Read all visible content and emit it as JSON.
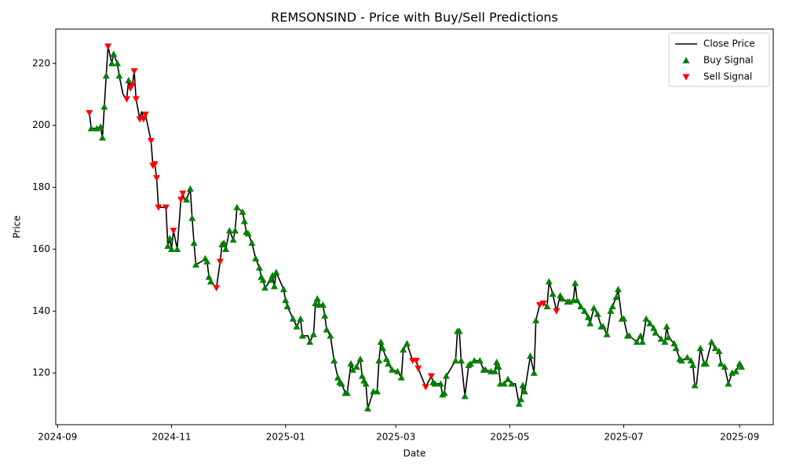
{
  "chart_data": {
    "type": "line",
    "title": "REMSONSIND - Price with Buy/Sell Predictions",
    "xlabel": "Date",
    "ylabel": "Price",
    "xlim": [
      "2024-08-31",
      "2025-09-19"
    ],
    "xticks": [
      {
        "value": "2024-09-01",
        "label": "2024-09"
      },
      {
        "value": "2024-11-01",
        "label": "2024-11"
      },
      {
        "value": "2025-01-01",
        "label": "2025-01"
      },
      {
        "value": "2025-03-01",
        "label": "2025-03"
      },
      {
        "value": "2025-05-01",
        "label": "2025-05"
      },
      {
        "value": "2025-07-01",
        "label": "2025-07"
      },
      {
        "value": "2025-09-01",
        "label": "2025-09"
      }
    ],
    "ylim": [
      103.3,
      231.1
    ],
    "yticks": [
      120,
      140,
      160,
      180,
      200,
      220
    ],
    "grid": false,
    "legend": "upper right",
    "series": [
      {
        "name": "Close Price",
        "type": "line",
        "color": "#000000",
        "x": [
          "2024-09-18",
          "2024-09-19",
          "2024-09-22",
          "2024-09-24",
          "2024-09-25",
          "2024-09-26",
          "2024-09-27",
          "2024-09-28",
          "2024-09-30",
          "2024-10-01",
          "2024-10-03",
          "2024-10-04",
          "2024-10-06",
          "2024-10-08",
          "2024-10-09",
          "2024-10-10",
          "2024-10-11",
          "2024-10-12",
          "2024-10-13",
          "2024-10-15",
          "2024-10-16",
          "2024-10-17",
          "2024-10-18",
          "2024-10-21",
          "2024-10-22",
          "2024-10-23",
          "2024-10-24",
          "2024-10-25",
          "2024-10-27",
          "2024-10-29",
          "2024-10-30",
          "2024-10-31",
          "2024-11-01",
          "2024-11-02",
          "2024-11-04",
          "2024-11-06",
          "2024-11-07",
          "2024-11-08",
          "2024-11-09",
          "2024-11-11",
          "2024-11-12",
          "2024-11-13",
          "2024-11-14",
          "2024-11-17",
          "2024-11-19",
          "2024-11-20",
          "2024-11-21",
          "2024-11-22",
          "2024-11-25",
          "2024-11-27",
          "2024-11-28",
          "2024-11-29",
          "2024-11-30",
          "2024-12-02",
          "2024-12-04",
          "2024-12-05",
          "2024-12-06",
          "2024-12-09",
          "2024-12-10",
          "2024-12-11",
          "2024-12-12",
          "2024-12-14",
          "2024-12-16",
          "2024-12-18",
          "2024-12-19",
          "2024-12-20",
          "2024-12-21",
          "2024-12-24",
          "2024-12-25",
          "2024-12-26",
          "2024-12-27",
          "2024-12-31",
          "2025-01-01",
          "2025-01-02",
          "2025-01-05",
          "2025-01-07",
          "2025-01-09",
          "2025-01-10",
          "2025-01-13",
          "2025-01-14",
          "2025-01-16",
          "2025-01-17",
          "2025-01-18",
          "2025-01-19",
          "2025-01-21",
          "2025-01-22",
          "2025-01-23",
          "2025-01-25",
          "2025-01-27",
          "2025-01-29",
          "2025-01-30",
          "2025-01-31",
          "2025-02-02",
          "2025-02-03",
          "2025-02-05",
          "2025-02-06",
          "2025-02-08",
          "2025-02-10",
          "2025-02-11",
          "2025-02-12",
          "2025-02-13",
          "2025-02-14",
          "2025-02-17",
          "2025-02-19",
          "2025-02-20",
          "2025-02-21",
          "2025-02-22",
          "2025-02-24",
          "2025-02-25",
          "2025-02-27",
          "2025-03-02",
          "2025-03-04",
          "2025-03-05",
          "2025-03-07",
          "2025-03-10",
          "2025-03-12",
          "2025-03-13",
          "2025-03-17",
          "2025-03-20",
          "2025-03-21",
          "2025-03-22",
          "2025-03-25",
          "2025-03-26",
          "2025-03-27",
          "2025-03-28",
          "2025-04-02",
          "2025-04-03",
          "2025-04-04",
          "2025-04-05",
          "2025-04-07",
          "2025-04-09",
          "2025-04-10",
          "2025-04-12",
          "2025-04-15",
          "2025-04-17",
          "2025-04-18",
          "2025-04-21",
          "2025-04-23",
          "2025-04-24",
          "2025-04-25",
          "2025-04-26",
          "2025-04-28",
          "2025-04-30",
          "2025-05-02",
          "2025-05-04",
          "2025-05-06",
          "2025-05-07",
          "2025-05-08",
          "2025-05-09",
          "2025-05-12",
          "2025-05-14",
          "2025-05-15",
          "2025-05-17",
          "2025-05-19",
          "2025-05-21",
          "2025-05-22",
          "2025-05-24",
          "2025-05-26",
          "2025-05-28",
          "2025-05-29",
          "2025-06-01",
          "2025-06-02",
          "2025-06-04",
          "2025-06-05",
          "2025-06-06",
          "2025-06-08",
          "2025-06-10",
          "2025-06-12",
          "2025-06-13",
          "2025-06-15",
          "2025-06-17",
          "2025-06-19",
          "2025-06-20",
          "2025-06-22",
          "2025-06-24",
          "2025-06-25",
          "2025-06-27",
          "2025-06-28",
          "2025-06-30",
          "2025-07-01",
          "2025-07-03",
          "2025-07-04",
          "2025-07-08",
          "2025-07-10",
          "2025-07-11",
          "2025-07-13",
          "2025-07-15",
          "2025-07-17",
          "2025-07-18",
          "2025-07-21",
          "2025-07-23",
          "2025-07-24",
          "2025-07-25",
          "2025-07-28",
          "2025-07-29",
          "2025-07-31",
          "2025-08-01",
          "2025-08-04",
          "2025-08-06",
          "2025-08-07",
          "2025-08-08",
          "2025-08-09",
          "2025-08-11",
          "2025-08-13",
          "2025-08-14",
          "2025-08-17",
          "2025-08-19",
          "2025-08-21",
          "2025-08-22",
          "2025-08-24",
          "2025-08-26",
          "2025-08-28",
          "2025-08-30",
          "2025-09-01",
          "2025-09-02"
        ],
        "values": [
          204,
          199,
          199,
          199.5,
          196,
          206,
          216,
          225.5,
          220,
          223,
          220,
          216,
          210,
          208.5,
          214.5,
          212,
          213,
          217.5,
          208.5,
          202,
          204.5,
          202,
          203.5,
          195,
          187,
          187.5,
          183,
          173.5,
          173.5,
          173.5,
          161,
          163.5,
          160,
          166,
          160,
          176,
          178,
          176,
          176,
          179.5,
          170,
          162,
          155,
          156,
          157,
          156,
          151,
          149.5,
          147.5,
          156,
          161.5,
          162,
          160,
          166,
          163,
          166,
          173.5,
          172,
          169,
          165.5,
          165,
          162,
          157,
          154,
          151,
          150,
          147.5,
          150,
          151.5,
          148,
          152.5,
          147,
          143.5,
          141.5,
          137.5,
          135,
          137.5,
          132,
          132,
          130,
          132.5,
          142.5,
          144,
          142,
          142,
          138.5,
          134,
          132,
          124,
          118.5,
          117,
          116.5,
          113.5,
          113.5,
          123,
          121,
          122,
          124.5,
          119,
          117.5,
          116.5,
          108.5,
          114,
          114,
          124,
          130,
          128,
          124.5,
          123,
          121,
          120.5,
          118.5,
          127.5,
          129.5,
          124,
          124,
          121.5,
          115.5,
          119,
          117,
          116.5,
          116.5,
          113,
          113.5,
          119,
          124,
          133.5,
          133.5,
          124,
          112.5,
          122.5,
          123,
          124,
          124,
          121,
          121,
          120.5,
          120.5,
          123.5,
          122,
          116.5,
          116.5,
          118,
          116.5,
          116.5,
          110,
          111.5,
          116,
          114,
          125.5,
          120,
          137,
          142,
          142.5,
          141.5,
          149.5,
          145.5,
          140,
          145,
          144,
          143,
          143,
          143.5,
          149,
          143.5,
          141.5,
          140,
          138,
          136,
          141,
          139,
          135,
          135,
          132.5,
          140,
          141.5,
          144.5,
          147,
          137.5,
          137.5,
          132,
          132,
          130,
          132,
          130,
          137.5,
          136,
          134.5,
          133,
          131,
          130,
          135,
          131.5,
          129.5,
          128,
          124.5,
          124,
          125,
          124,
          122.5,
          116,
          116.5,
          128,
          123,
          123,
          130,
          128,
          127,
          123,
          122,
          116.5,
          120,
          120.5,
          123,
          122
        ]
      },
      {
        "name": "Buy Signal",
        "type": "scatter",
        "marker": "up",
        "color": "#008000",
        "x": [
          "2024-09-19",
          "2024-09-22",
          "2024-09-24",
          "2024-09-25",
          "2024-09-26",
          "2024-09-27",
          "2024-09-30",
          "2024-10-01",
          "2024-10-03",
          "2024-10-04",
          "2024-10-09",
          "2024-10-30",
          "2024-10-31",
          "2024-11-01",
          "2024-11-04",
          "2024-11-09",
          "2024-11-11",
          "2024-11-12",
          "2024-11-13",
          "2024-11-14",
          "2024-11-19",
          "2024-11-20",
          "2024-11-21",
          "2024-11-22",
          "2024-11-28",
          "2024-11-29",
          "2024-11-30",
          "2024-12-02",
          "2024-12-04",
          "2024-12-05",
          "2024-12-06",
          "2024-12-09",
          "2024-12-10",
          "2024-12-11",
          "2024-12-12",
          "2024-12-14",
          "2024-12-16",
          "2024-12-18",
          "2024-12-19",
          "2024-12-20",
          "2024-12-21",
          "2024-12-24",
          "2024-12-25",
          "2024-12-26",
          "2024-12-27",
          "2024-12-31",
          "2025-01-01",
          "2025-01-02",
          "2025-01-05",
          "2025-01-07",
          "2025-01-09",
          "2025-01-10",
          "2025-01-14",
          "2025-01-16",
          "2025-01-17",
          "2025-01-18",
          "2025-01-19",
          "2025-01-21",
          "2025-01-22",
          "2025-01-23",
          "2025-01-25",
          "2025-01-27",
          "2025-01-29",
          "2025-01-30",
          "2025-01-31",
          "2025-02-02",
          "2025-02-03",
          "2025-02-05",
          "2025-02-06",
          "2025-02-08",
          "2025-02-10",
          "2025-02-11",
          "2025-02-12",
          "2025-02-13",
          "2025-02-14",
          "2025-02-17",
          "2025-02-19",
          "2025-02-20",
          "2025-02-21",
          "2025-02-22",
          "2025-02-24",
          "2025-02-25",
          "2025-02-27",
          "2025-03-02",
          "2025-03-04",
          "2025-03-05",
          "2025-03-07",
          "2025-03-21",
          "2025-03-22",
          "2025-03-25",
          "2025-03-26",
          "2025-03-27",
          "2025-03-28",
          "2025-04-02",
          "2025-04-03",
          "2025-04-04",
          "2025-04-05",
          "2025-04-07",
          "2025-04-09",
          "2025-04-10",
          "2025-04-12",
          "2025-04-15",
          "2025-04-17",
          "2025-04-18",
          "2025-04-21",
          "2025-04-23",
          "2025-04-24",
          "2025-04-25",
          "2025-04-26",
          "2025-04-28",
          "2025-04-30",
          "2025-05-02",
          "2025-05-06",
          "2025-05-07",
          "2025-05-08",
          "2025-05-09",
          "2025-05-12",
          "2025-05-14",
          "2025-05-15",
          "2025-05-21",
          "2025-05-22",
          "2025-05-24",
          "2025-05-28",
          "2025-05-29",
          "2025-06-01",
          "2025-06-02",
          "2025-06-04",
          "2025-06-05",
          "2025-06-06",
          "2025-06-08",
          "2025-06-10",
          "2025-06-12",
          "2025-06-13",
          "2025-06-15",
          "2025-06-17",
          "2025-06-19",
          "2025-06-20",
          "2025-06-22",
          "2025-06-24",
          "2025-06-25",
          "2025-06-27",
          "2025-06-28",
          "2025-06-30",
          "2025-07-01",
          "2025-07-03",
          "2025-07-04",
          "2025-07-08",
          "2025-07-10",
          "2025-07-11",
          "2025-07-13",
          "2025-07-15",
          "2025-07-17",
          "2025-07-18",
          "2025-07-21",
          "2025-07-23",
          "2025-07-24",
          "2025-07-25",
          "2025-07-28",
          "2025-07-29",
          "2025-07-31",
          "2025-08-01",
          "2025-08-04",
          "2025-08-06",
          "2025-08-07",
          "2025-08-08",
          "2025-08-11",
          "2025-08-13",
          "2025-08-14",
          "2025-08-17",
          "2025-08-19",
          "2025-08-21",
          "2025-08-22",
          "2025-08-24",
          "2025-08-26",
          "2025-08-28",
          "2025-08-30",
          "2025-09-01",
          "2025-09-02"
        ],
        "values": [
          199,
          199,
          199.5,
          196,
          206,
          216,
          220,
          223,
          220,
          216,
          214.5,
          161,
          163.5,
          160,
          160,
          176,
          179.5,
          170,
          162,
          155,
          157,
          156,
          151,
          149.5,
          161.5,
          162,
          160,
          166,
          163,
          166,
          173.5,
          172,
          169,
          165.5,
          165,
          162,
          157,
          154,
          151,
          150,
          147.5,
          150,
          151.5,
          148,
          152.5,
          147,
          143.5,
          141.5,
          137.5,
          135,
          137.5,
          132,
          130,
          132.5,
          142.5,
          144,
          142,
          142,
          138.5,
          134,
          132,
          124,
          118.5,
          117,
          116.5,
          113.5,
          113.5,
          123,
          121,
          122,
          124.5,
          119,
          117.5,
          116.5,
          108.5,
          114,
          114,
          124,
          130,
          128,
          124.5,
          123,
          121,
          120.5,
          118.5,
          127.5,
          129.5,
          117,
          116.5,
          116.5,
          113,
          113.5,
          119,
          124,
          133.5,
          133.5,
          124,
          112.5,
          122.5,
          123,
          124,
          124,
          121,
          121,
          120.5,
          120.5,
          123.5,
          122,
          116.5,
          116.5,
          118,
          116.5,
          110,
          111.5,
          116,
          114,
          125.5,
          120,
          137,
          141.5,
          149.5,
          145.5,
          145,
          144,
          143,
          143,
          143.5,
          149,
          143.5,
          141.5,
          140,
          138,
          136,
          141,
          139,
          135,
          135,
          132.5,
          140,
          141.5,
          144.5,
          147,
          137.5,
          137.5,
          132,
          132,
          130,
          132,
          130,
          137.5,
          136,
          134.5,
          133,
          131,
          130,
          135,
          131.5,
          129.5,
          128,
          124.5,
          124,
          125,
          124,
          122.5,
          116,
          128,
          123,
          123,
          130,
          128,
          127,
          123,
          122,
          116.5,
          120,
          120.5,
          123,
          122
        ]
      },
      {
        "name": "Sell Signal",
        "type": "scatter",
        "marker": "down",
        "color": "#ff0000",
        "x": [
          "2024-09-18",
          "2024-09-28",
          "2024-10-08",
          "2024-10-10",
          "2024-10-11",
          "2024-10-12",
          "2024-10-13",
          "2024-10-15",
          "2024-10-17",
          "2024-10-18",
          "2024-10-21",
          "2024-10-22",
          "2024-10-23",
          "2024-10-24",
          "2024-10-25",
          "2024-10-29",
          "2024-11-02",
          "2024-11-06",
          "2024-11-07",
          "2024-11-25",
          "2024-11-27",
          "2025-03-10",
          "2025-03-12",
          "2025-03-13",
          "2025-03-17",
          "2025-03-20",
          "2025-05-17",
          "2025-05-19",
          "2025-05-26"
        ],
        "values": [
          204,
          225.5,
          208.5,
          212,
          213,
          217.5,
          208.5,
          202,
          202,
          203.5,
          195,
          187,
          187.5,
          183,
          173.5,
          173.5,
          166,
          176,
          178,
          147.5,
          156,
          124,
          124,
          121.5,
          115.5,
          119,
          142,
          142.5,
          140
        ]
      }
    ]
  }
}
